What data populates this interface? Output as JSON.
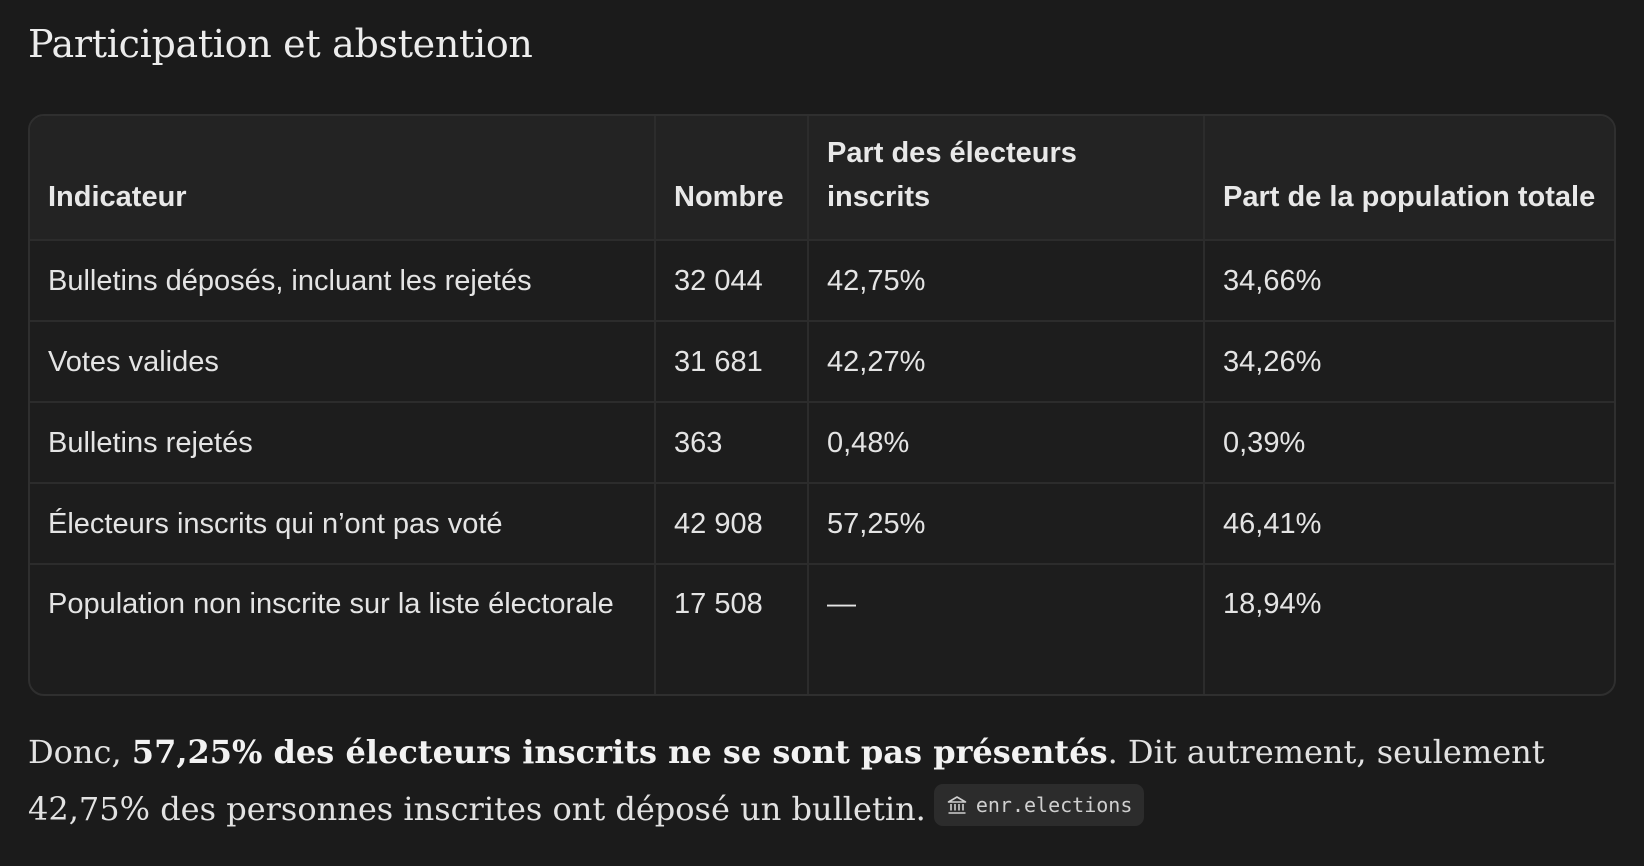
{
  "heading": "Participation et abstention",
  "table": {
    "headers": [
      "Indicateur",
      "Nombre",
      "Part des électeurs inscrits",
      "Part de la population totale"
    ],
    "rows": [
      [
        "Bulletins déposés, incluant les rejetés",
        "32 044",
        "42,75%",
        "34,66%"
      ],
      [
        "Votes valides",
        "31 681",
        "42,27%",
        "34,26%"
      ],
      [
        "Bulletins rejetés",
        "363",
        "0,48%",
        "0,39%"
      ],
      [
        "Électeurs inscrits qui n’ont pas voté",
        "42 908",
        "57,25%",
        "46,41%"
      ],
      [
        "Population non inscrite sur la liste électorale",
        "17 508",
        "—",
        "18,94%"
      ]
    ]
  },
  "summary": {
    "prefix": "Donc, ",
    "bold": "57,25% des électeurs inscrits ne se sont pas présentés",
    "suffix": ". Dit autrement, seulement 42,75% des personnes inscrites ont déposé un bulletin.",
    "source_icon": "institution-icon",
    "source_label": "enr.elections"
  }
}
